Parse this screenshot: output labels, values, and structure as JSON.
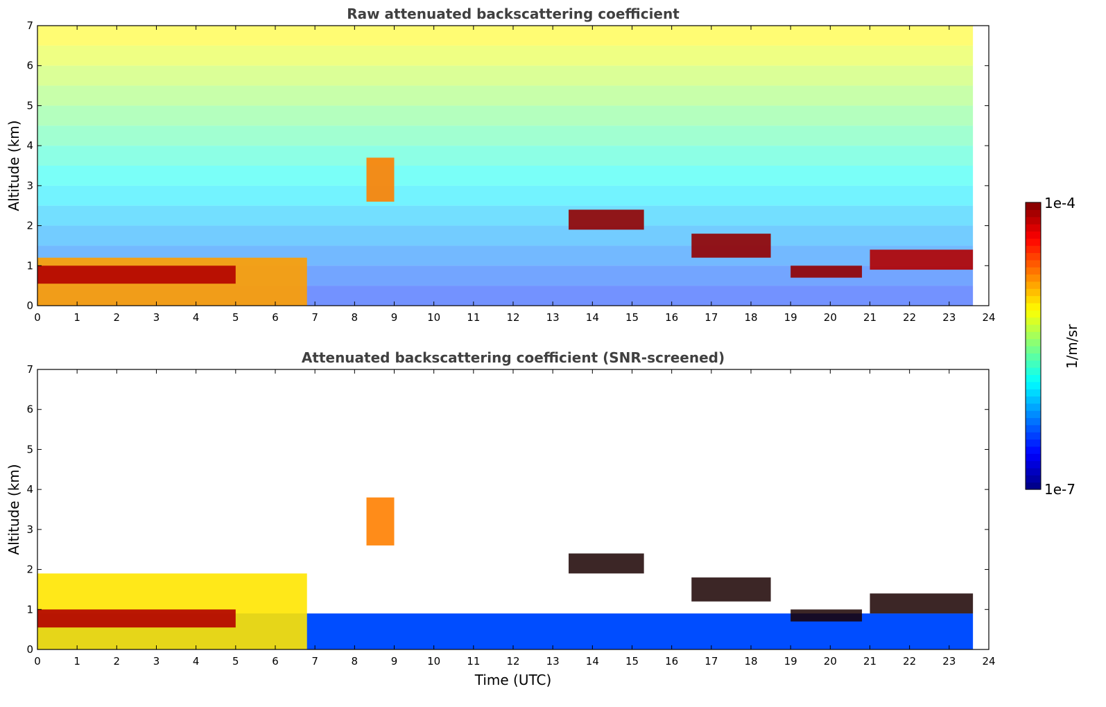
{
  "chart_data": [
    {
      "type": "heatmap",
      "title": "Raw attenuated backscattering coefficient",
      "xlabel": "",
      "ylabel": "Altitude (km)",
      "xlim": [
        0,
        24
      ],
      "ylim": [
        0,
        7
      ],
      "xticks": [
        "0",
        "1",
        "2",
        "3",
        "4",
        "5",
        "6",
        "7",
        "8",
        "9",
        "10",
        "11",
        "12",
        "13",
        "14",
        "15",
        "16",
        "17",
        "18",
        "19",
        "20",
        "21",
        "22",
        "23",
        "24"
      ],
      "yticks": [
        "0",
        "1",
        "2",
        "3",
        "4",
        "5",
        "6",
        "7"
      ],
      "data_end_time": 23.6,
      "features": [
        {
          "name": "boundary layer aerosol",
          "t0": 0,
          "t1": 6.8,
          "z0": 0,
          "z1": 1.2,
          "level": 0.72
        },
        {
          "name": "elevated layer",
          "t0": 0,
          "t1": 5,
          "z0": 0.55,
          "z1": 1.0,
          "level": 0.95
        },
        {
          "name": "mid cloud",
          "t0": 8.3,
          "t1": 9.0,
          "z0": 2.6,
          "z1": 3.7,
          "level": 0.75
        },
        {
          "name": "cloud layer",
          "t0": 13.4,
          "t1": 15.3,
          "z0": 1.9,
          "z1": 2.4,
          "level": 0.98
        },
        {
          "name": "cloud layer",
          "t0": 16.5,
          "t1": 18.5,
          "z0": 1.2,
          "z1": 1.8,
          "level": 0.98
        },
        {
          "name": "cloud layer",
          "t0": 19.0,
          "t1": 20.8,
          "z0": 0.7,
          "z1": 1.0,
          "level": 0.98
        },
        {
          "name": "cloud layer",
          "t0": 21.0,
          "t1": 23.6,
          "z0": 0.9,
          "z1": 1.4,
          "level": 0.95
        }
      ]
    },
    {
      "type": "heatmap",
      "title": "Attenuated backscattering coefficient (SNR-screened)",
      "xlabel": "Time (UTC)",
      "ylabel": "Altitude (km)",
      "xlim": [
        0,
        24
      ],
      "ylim": [
        0,
        7
      ],
      "xticks": [
        "0",
        "1",
        "2",
        "3",
        "4",
        "5",
        "6",
        "7",
        "8",
        "9",
        "10",
        "11",
        "12",
        "13",
        "14",
        "15",
        "16",
        "17",
        "18",
        "19",
        "20",
        "21",
        "22",
        "23",
        "24"
      ],
      "yticks": [
        "0",
        "1",
        "2",
        "3",
        "4",
        "5",
        "6",
        "7"
      ],
      "data_end_time": 23.6,
      "features": [
        {
          "name": "boundary layer aerosol",
          "t0": 0,
          "t1": 6.8,
          "z0": 0,
          "z1": 1.9,
          "level": 0.65
        },
        {
          "name": "elevated layer",
          "t0": 0,
          "t1": 5,
          "z0": 0.55,
          "z1": 1.0,
          "level": 0.95
        },
        {
          "name": "mid cloud",
          "t0": 8.3,
          "t1": 9.0,
          "z0": 2.6,
          "z1": 3.8,
          "level": 0.75
        },
        {
          "name": "cloud layer",
          "t0": 13.4,
          "t1": 15.3,
          "z0": 1.9,
          "z1": 2.4,
          "level": 1.0
        },
        {
          "name": "cloud layer",
          "t0": 16.5,
          "t1": 18.5,
          "z0": 1.2,
          "z1": 1.8,
          "level": 1.0
        },
        {
          "name": "cloud layer",
          "t0": 19.0,
          "t1": 20.8,
          "z0": 0.7,
          "z1": 1.0,
          "level": 1.0
        },
        {
          "name": "cloud layer",
          "t0": 21.0,
          "t1": 23.6,
          "z0": 0.9,
          "z1": 1.4,
          "level": 1.0
        }
      ]
    }
  ],
  "colorbar": {
    "min_label": "1e-7",
    "max_label": "1e-4",
    "unit_label": "1/m/sr",
    "colormap": "jet"
  }
}
